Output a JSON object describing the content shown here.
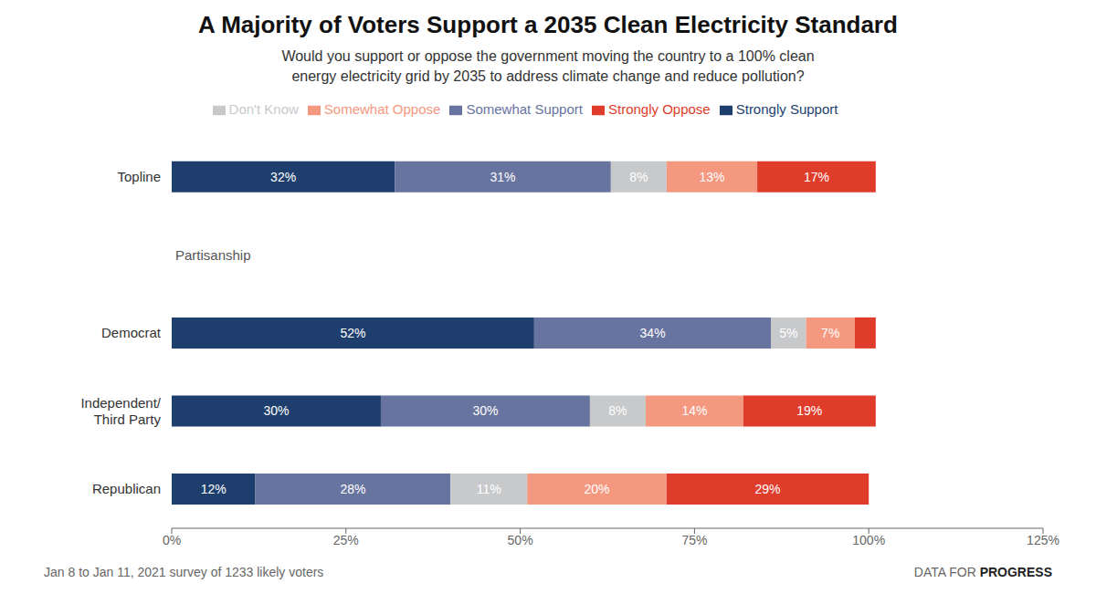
{
  "chart_data": {
    "type": "bar",
    "orientation": "horizontal",
    "stacked": true,
    "data_labels": true,
    "grid": false,
    "legend": "top",
    "title": "A Majority of Voters Support a 2035 Clean Electricity Standard",
    "subtitle": "Would you support or oppose the government moving the country to a 100% clean\nenergy electricity grid by 2035 to address climate change and reduce pollution?",
    "footnote": "Jan 8 to Jan 11, 2021 survey of 1233 likely voters",
    "source": "DATA FOR PROGRESS",
    "annotations": [
      "Partisanship"
    ],
    "categories": [
      "Topline",
      "Democrat",
      "Independent/\nThird Party",
      "Republican"
    ],
    "series": [
      {
        "name": "Strongly Support",
        "color": "#1e3f6e",
        "values": [
          32,
          52,
          30,
          12
        ],
        "value_labels": [
          "32%",
          "52%",
          "30%",
          "12%"
        ]
      },
      {
        "name": "Somewhat Support",
        "color": "#6874a0",
        "values": [
          31,
          34,
          30,
          28
        ],
        "value_labels": [
          "31%",
          "34%",
          "30%",
          "28%"
        ]
      },
      {
        "name": "Don't Know",
        "color": "#c8c9cb",
        "values": [
          8,
          5,
          8,
          11
        ],
        "value_labels": [
          "8%",
          "5%",
          "8%",
          "11%"
        ]
      },
      {
        "name": "Somewhat Oppose",
        "color": "#f49880",
        "values": [
          13,
          7,
          14,
          20
        ],
        "value_labels": [
          "13%",
          "7%",
          "14%",
          "20%"
        ]
      },
      {
        "name": "Strongly Oppose",
        "color": "#e03c2b",
        "values": [
          17,
          3,
          19,
          29
        ],
        "value_labels": [
          "17%",
          null,
          "19%",
          "29%"
        ]
      }
    ],
    "xlim": [
      0,
      125
    ],
    "xticks": [
      {
        "value": 0,
        "label": "0%"
      },
      {
        "value": 25,
        "label": "25%"
      },
      {
        "value": 50,
        "label": "50%"
      },
      {
        "value": 75,
        "label": "75%"
      },
      {
        "value": 100,
        "label": "100%"
      },
      {
        "value": 125,
        "label": "125%"
      }
    ]
  }
}
